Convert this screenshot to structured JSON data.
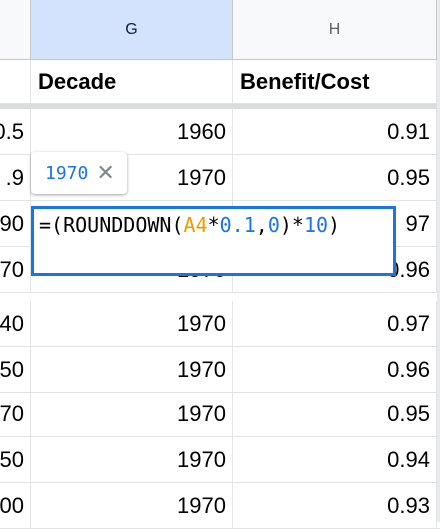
{
  "columns": [
    {
      "letter": ""
    },
    {
      "letter": "G"
    },
    {
      "letter": "H"
    }
  ],
  "header_row": {
    "f": "",
    "g": "Decade",
    "h": "Benefit/Cost"
  },
  "rows": [
    {
      "f": "0.5",
      "g": "1960",
      "h": "0.91"
    },
    {
      "f": ".9",
      "g": "1970",
      "h": "0.95"
    },
    {
      "f": "90",
      "g": "",
      "h": "97"
    },
    {
      "f": "70",
      "g": "1970",
      "h": "0.96"
    },
    {
      "f": "40",
      "g": "1970",
      "h": "0.97"
    },
    {
      "f": "50",
      "g": "1970",
      "h": "0.96"
    },
    {
      "f": "70",
      "g": "1970",
      "h": "0.95"
    },
    {
      "f": "50",
      "g": "1970",
      "h": "0.94"
    },
    {
      "f": "00",
      "g": "1970",
      "h": "0.93"
    }
  ],
  "formula_hint": {
    "value": "1970",
    "close_icon": "close-icon"
  },
  "formula_editor": {
    "parts": {
      "prefix": "=(ROUNDDOWN(",
      "ref": "A4",
      "op1": "*",
      "num1": "0.1",
      "comma": ",",
      "num2": "0",
      "mid": ")*",
      "num3": "10",
      "suffix": ")"
    }
  },
  "colors": {
    "selection": "#1a73e8",
    "reference": "#f29900",
    "header_bg": "#f8f9fa",
    "selected_header_bg": "#d3e3fd"
  }
}
